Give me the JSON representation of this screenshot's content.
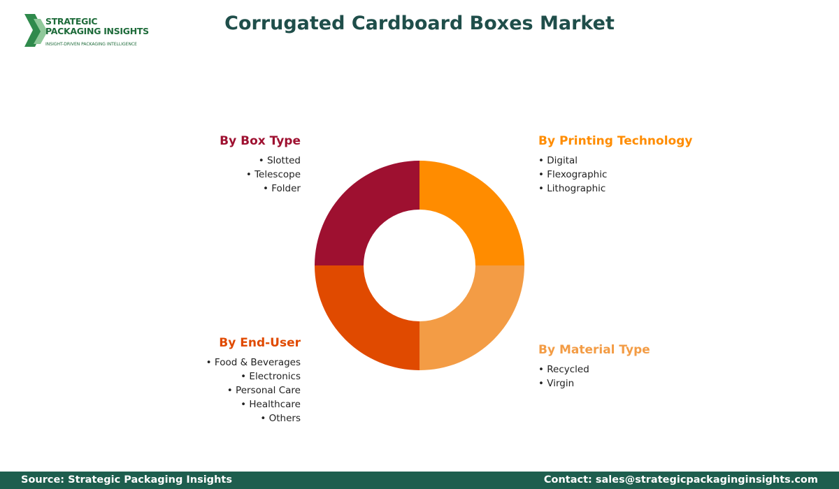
{
  "header": {
    "logo": {
      "line1": "STRATEGIC",
      "line2": "PACKAGING INSIGHTS",
      "tagline": "INSIGHT-DRIVEN PACKAGING INTELLIGENCE"
    },
    "title": "Corrugated Cardboard Boxes Market"
  },
  "segments": [
    {
      "title": "By Box Type",
      "items": [
        "Slotted",
        "Telescope",
        "Folder"
      ]
    },
    {
      "title": "By Printing Technology",
      "items": [
        "Digital",
        "Flexographic",
        "Lithographic"
      ]
    },
    {
      "title": "By End-User",
      "items": [
        "Food & Beverages",
        "Electronics",
        "Personal Care",
        "Healthcare",
        "Others"
      ]
    },
    {
      "title": "By Material Type",
      "items": [
        "Recycled",
        "Virgin"
      ]
    }
  ],
  "footer": {
    "source": "Source: Strategic Packaging Insights",
    "contact": "Contact: sales@strategicpackaginginsights.com"
  }
}
